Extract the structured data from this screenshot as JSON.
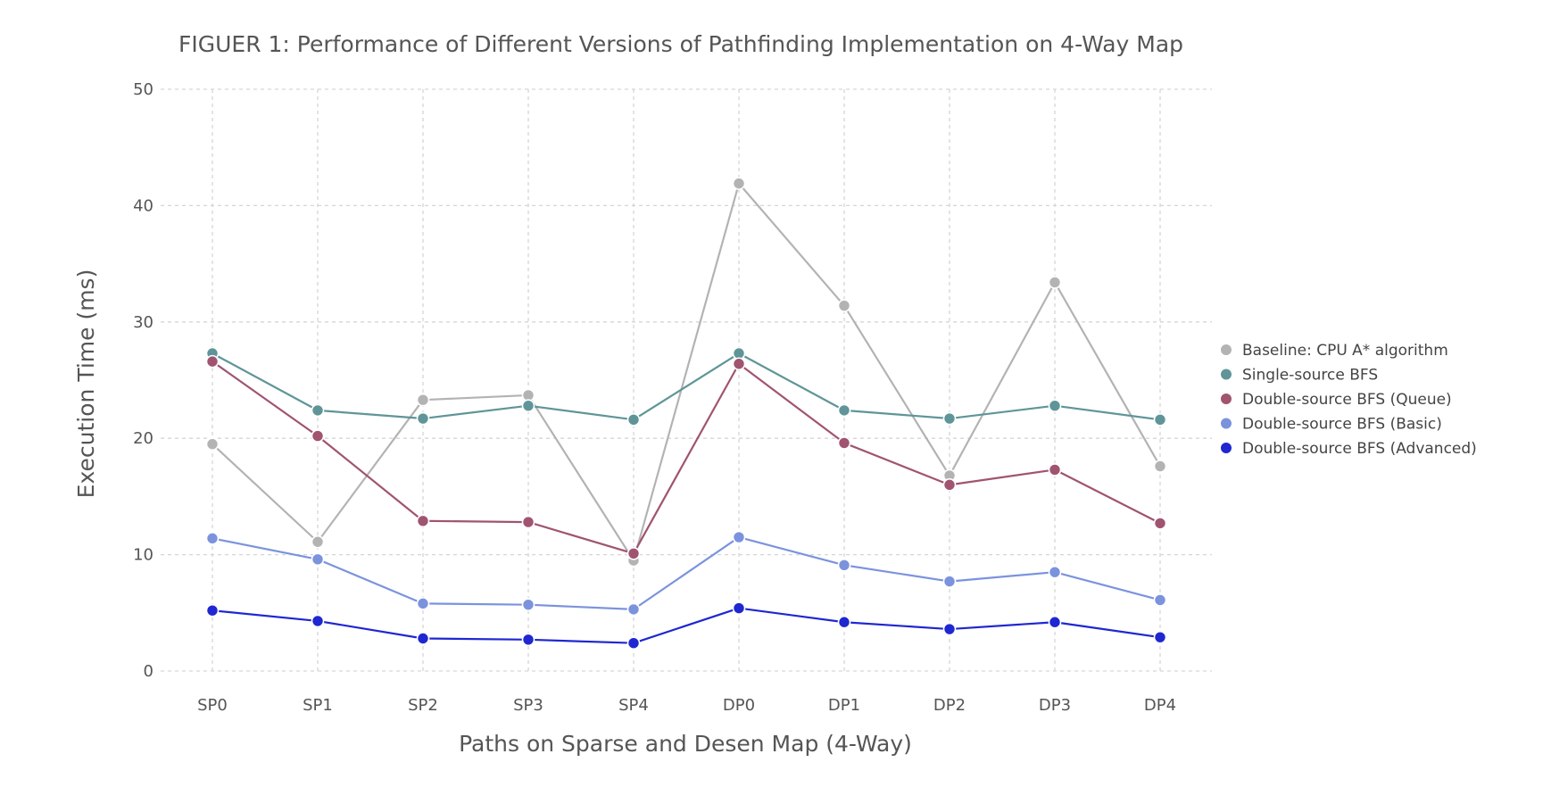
{
  "chart_data": {
    "type": "line",
    "title": "FIGUER 1: Performance of Different Versions of Pathfinding Implementation on 4-Way Map",
    "xlabel": "Paths on Sparse and Desen Map (4-Way)",
    "ylabel": "Execution Time (ms)",
    "categories": [
      "SP0",
      "SP1",
      "SP2",
      "SP3",
      "SP4",
      "DP0",
      "DP1",
      "DP2",
      "DP3",
      "DP4"
    ],
    "ylim": [
      0,
      50
    ],
    "yticks": [
      "0",
      "10",
      "20",
      "30",
      "40",
      "50"
    ],
    "grid": true,
    "legend_position": "right",
    "series": [
      {
        "name": "Baseline: CPU A* algorithm",
        "color": "#b3b3b3",
        "values": [
          19.5,
          11.1,
          23.3,
          23.7,
          9.5,
          41.9,
          31.4,
          16.8,
          33.4,
          17.6
        ]
      },
      {
        "name": "Single-source BFS",
        "color": "#5f9598",
        "values": [
          27.3,
          22.4,
          21.7,
          22.8,
          21.6,
          27.3,
          22.4,
          21.7,
          22.8,
          21.6
        ]
      },
      {
        "name": "Double-source BFS (Queue)",
        "color": "#a05470",
        "values": [
          26.6,
          20.2,
          12.9,
          12.8,
          10.1,
          26.4,
          19.6,
          16.0,
          17.3,
          12.7
        ]
      },
      {
        "name": "Double-source BFS (Basic)",
        "color": "#7b93dd",
        "values": [
          11.4,
          9.6,
          5.8,
          5.7,
          5.3,
          11.5,
          9.1,
          7.7,
          8.5,
          6.1
        ]
      },
      {
        "name": "Double-source BFS (Advanced)",
        "color": "#1f27d1",
        "values": [
          5.2,
          4.3,
          2.8,
          2.7,
          2.4,
          5.4,
          4.2,
          3.6,
          4.2,
          2.9
        ]
      }
    ]
  }
}
